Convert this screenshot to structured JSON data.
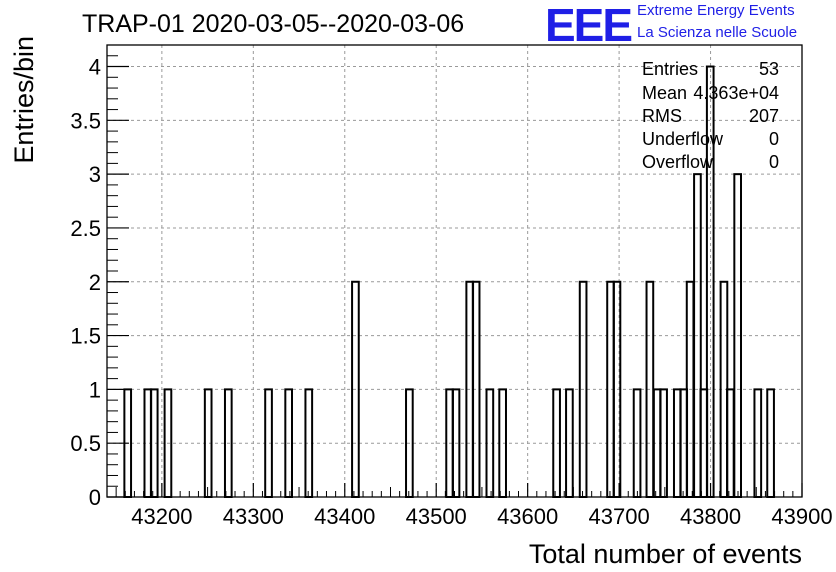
{
  "header": {
    "title": "TRAP-01 2020-03-05--2020-03-06",
    "logo_text": "EEE",
    "logo_line1": "Extreme Energy Events",
    "logo_line2": "La Scienza nelle Scuole"
  },
  "stats": [
    {
      "name": "Entries",
      "value": "53"
    },
    {
      "name": "Mean",
      "value": "4.363e+04"
    },
    {
      "name": "RMS",
      "value": "207"
    },
    {
      "name": "Underflow",
      "value": "0"
    },
    {
      "name": "Overflow",
      "value": "0"
    }
  ],
  "colors": {
    "logo": "#1f1fe6",
    "grid": "#9a9a9a",
    "line": "#000000"
  },
  "chart_data": {
    "type": "bar",
    "title": "TRAP-01 2020-03-05--2020-03-06",
    "xlabel": "Total number of events",
    "ylabel": "Entries/bin",
    "xlim": [
      43140,
      43900
    ],
    "ylim": [
      0,
      4.2
    ],
    "grid": true,
    "histogram": true,
    "bin_width": 7.3,
    "xticks": [
      "43200",
      "43300",
      "43400",
      "43500",
      "43600",
      "43700",
      "43800",
      "43900"
    ],
    "yticks": [
      "0",
      "0.5",
      "1",
      "1.5",
      "2",
      "2.5",
      "3",
      "3.5",
      "4"
    ],
    "bins": [
      {
        "x": 43159,
        "y": 1
      },
      {
        "x": 43181,
        "y": 1
      },
      {
        "x": 43188,
        "y": 1
      },
      {
        "x": 43203,
        "y": 1
      },
      {
        "x": 43247,
        "y": 1
      },
      {
        "x": 43269,
        "y": 1
      },
      {
        "x": 43313,
        "y": 1
      },
      {
        "x": 43335,
        "y": 1
      },
      {
        "x": 43357,
        "y": 1
      },
      {
        "x": 43408,
        "y": 2
      },
      {
        "x": 43467,
        "y": 1
      },
      {
        "x": 43511,
        "y": 1
      },
      {
        "x": 43518,
        "y": 1
      },
      {
        "x": 43533,
        "y": 2
      },
      {
        "x": 43540,
        "y": 2
      },
      {
        "x": 43555,
        "y": 1
      },
      {
        "x": 43569,
        "y": 1
      },
      {
        "x": 43628,
        "y": 1
      },
      {
        "x": 43642,
        "y": 1
      },
      {
        "x": 43657,
        "y": 2
      },
      {
        "x": 43687,
        "y": 2
      },
      {
        "x": 43694,
        "y": 2
      },
      {
        "x": 43716,
        "y": 1
      },
      {
        "x": 43730,
        "y": 2
      },
      {
        "x": 43738,
        "y": 1
      },
      {
        "x": 43745,
        "y": 1
      },
      {
        "x": 43760,
        "y": 1
      },
      {
        "x": 43767,
        "y": 1
      },
      {
        "x": 43774,
        "y": 2
      },
      {
        "x": 43782,
        "y": 3
      },
      {
        "x": 43789,
        "y": 1
      },
      {
        "x": 43796,
        "y": 4
      },
      {
        "x": 43811,
        "y": 2
      },
      {
        "x": 43818,
        "y": 1
      },
      {
        "x": 43826,
        "y": 3
      },
      {
        "x": 43848,
        "y": 1
      },
      {
        "x": 43862,
        "y": 1
      }
    ]
  }
}
